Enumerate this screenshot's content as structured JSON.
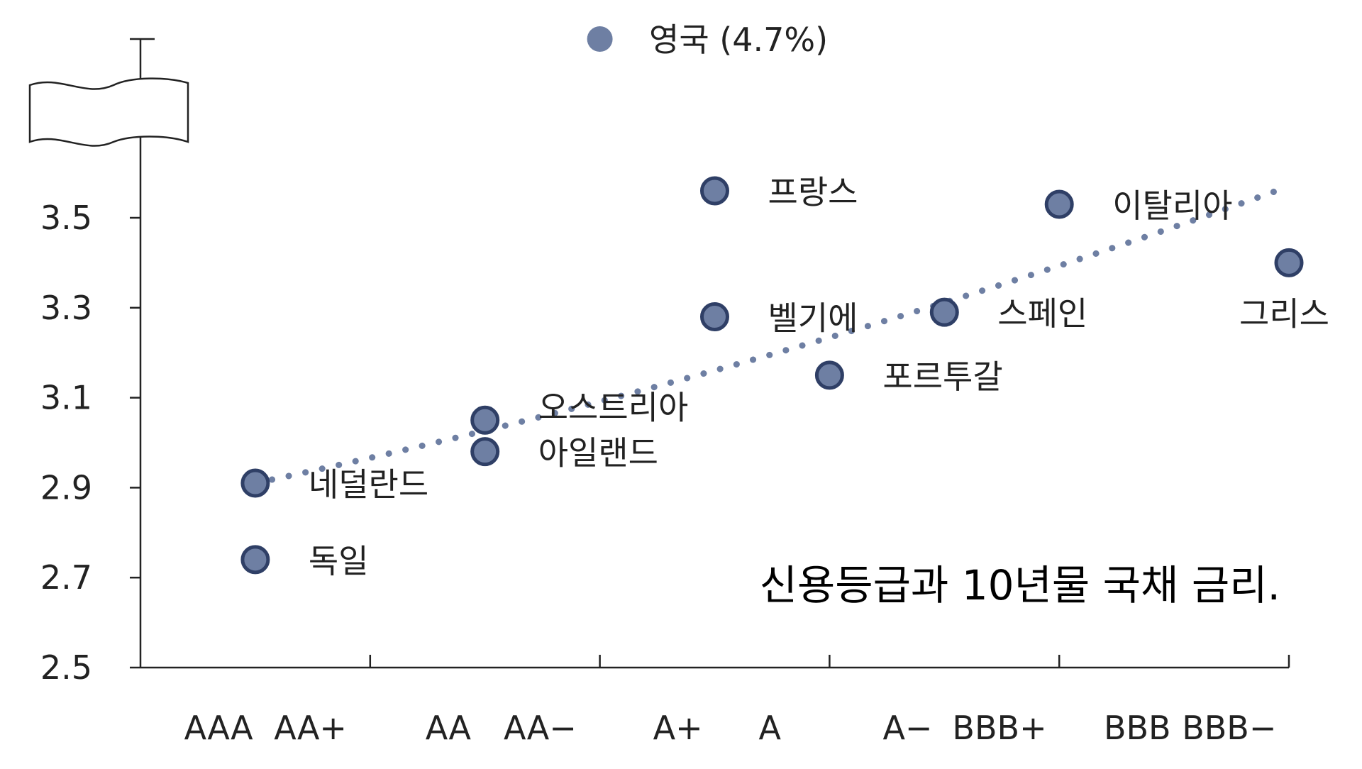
{
  "chart_data": {
    "type": "scatter",
    "caption": "신용등급과 10년물 국채 금리.",
    "x_categories": [
      "AAA",
      "AA+",
      "AA",
      "AA−",
      "A+",
      "A",
      "A−",
      "BBB+",
      "BBB",
      "BBB−"
    ],
    "y_ticks": [
      "2.5",
      "2.7",
      "2.9",
      "3.1",
      "3.3",
      "3.5"
    ],
    "ylim": [
      2.5,
      3.5
    ],
    "y_axis_break": true,
    "grid": false,
    "point_color": "#6e7fa3",
    "point_edge_color": "#2f3f66",
    "trend_line_color": "#6e7fa3",
    "trend_line_style": "dotted",
    "points": [
      {
        "label": "네덜란드",
        "rating_index": 0.5,
        "value": 2.91
      },
      {
        "label": "독일",
        "rating_index": 0.5,
        "value": 2.74
      },
      {
        "label": "오스트리아",
        "rating_index": 1.5,
        "value": 3.05
      },
      {
        "label": "아일랜드",
        "rating_index": 1.5,
        "value": 2.98
      },
      {
        "label": "프랑스",
        "rating_index": 2.5,
        "value": 3.56
      },
      {
        "label": "벨기에",
        "rating_index": 2.5,
        "value": 3.28
      },
      {
        "label": "포르투갈",
        "rating_index": 3.0,
        "value": 3.15
      },
      {
        "label": "스페인",
        "rating_index": 3.5,
        "value": 3.29
      },
      {
        "label": "이탈리아",
        "rating_index": 4.0,
        "value": 3.53
      },
      {
        "label": "그리스",
        "rating_index": 5.0,
        "value": 3.4
      }
    ],
    "outlier": {
      "label": "영국 (4.7%)",
      "value": 4.7
    },
    "trend_line": {
      "x": [
        0.5,
        5.0
      ],
      "y": [
        2.91,
        3.57
      ]
    }
  }
}
